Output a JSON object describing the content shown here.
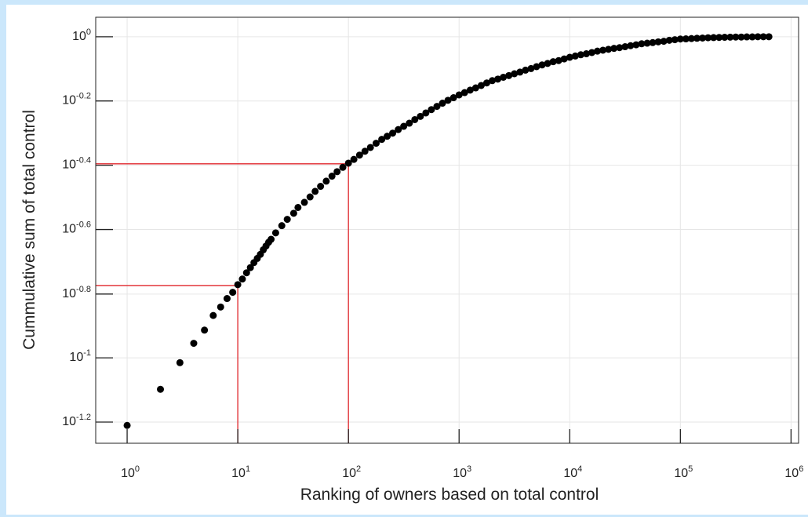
{
  "chart_data": {
    "type": "scatter",
    "x_label": "Ranking of owners based on total control",
    "y_label": "Cummulative sum of total control",
    "xscale": "log",
    "yscale": "log",
    "grid": true,
    "color": "#000000",
    "xlim": [
      0.52,
      1170000
    ],
    "ylim": [
      0.0542,
      1.15
    ],
    "xticks": [
      {
        "value": 1,
        "label": "10",
        "exponent": "0"
      },
      {
        "value": 10,
        "label": "10",
        "exponent": "1"
      },
      {
        "value": 100,
        "label": "10",
        "exponent": "2"
      },
      {
        "value": 1000,
        "label": "10",
        "exponent": "3"
      },
      {
        "value": 10000,
        "label": "10",
        "exponent": "4"
      },
      {
        "value": 100000,
        "label": "10",
        "exponent": "5"
      },
      {
        "value": 1000000,
        "label": "10",
        "exponent": "6"
      }
    ],
    "yticks": [
      {
        "value": 1,
        "label": "10",
        "exponent": "0"
      },
      {
        "value": 0.631,
        "label": "10",
        "exponent": "-0.2"
      },
      {
        "value": 0.398,
        "label": "10",
        "exponent": "-0.4"
      },
      {
        "value": 0.251,
        "label": "10",
        "exponent": "-0.6"
      },
      {
        "value": 0.158,
        "label": "10",
        "exponent": "-0.8"
      },
      {
        "value": 0.1,
        "label": "10",
        "exponent": "-1"
      },
      {
        "value": 0.0631,
        "label": "10",
        "exponent": "-1.2"
      }
    ],
    "reference_lines": [
      {
        "x": 10,
        "y": 0.168,
        "color": "#e0262b"
      },
      {
        "x": 100,
        "y": 0.402,
        "color": "#e0262b"
      }
    ],
    "x": [
      1,
      2,
      3,
      4,
      5,
      6,
      7,
      8,
      9,
      10,
      11,
      12,
      13,
      14,
      15,
      16,
      17,
      18,
      19,
      20,
      22,
      25,
      28,
      32,
      35,
      40,
      45,
      50,
      56,
      63,
      71,
      79,
      89,
      100,
      112,
      126,
      141,
      158,
      178,
      200,
      224,
      251,
      282,
      316,
      355,
      398,
      447,
      501,
      562,
      631,
      708,
      794,
      891,
      1000,
      1122,
      1259,
      1413,
      1585,
      1778,
      1995,
      2239,
      2512,
      2818,
      3162,
      3548,
      3981,
      4467,
      5012,
      5623,
      6310,
      7079,
      7943,
      8913,
      10000,
      11220,
      12589,
      14125,
      15849,
      17783,
      19953,
      22387,
      25119,
      28184,
      31623,
      35481,
      39811,
      44668,
      50119,
      56234,
      63096,
      70795,
      79433,
      89125,
      100000,
      112202,
      125893,
      141254,
      158489,
      177828,
      199526,
      223872,
      251189,
      281838,
      316228,
      354813,
      398107,
      446684,
      501187,
      562341,
      630957
    ],
    "values": [
      0.0616,
      0.0798,
      0.0966,
      0.111,
      0.122,
      0.1355,
      0.144,
      0.153,
      0.16,
      0.169,
      0.176,
      0.184,
      0.191,
      0.198,
      0.204,
      0.21,
      0.217,
      0.223,
      0.229,
      0.234,
      0.245,
      0.258,
      0.27,
      0.282,
      0.294,
      0.305,
      0.317,
      0.33,
      0.342,
      0.355,
      0.368,
      0.38,
      0.392,
      0.404,
      0.415,
      0.428,
      0.44,
      0.452,
      0.466,
      0.479,
      0.49,
      0.501,
      0.514,
      0.526,
      0.538,
      0.552,
      0.565,
      0.579,
      0.593,
      0.607,
      0.621,
      0.634,
      0.646,
      0.659,
      0.67,
      0.682,
      0.693,
      0.705,
      0.718,
      0.73,
      0.738,
      0.748,
      0.757,
      0.767,
      0.776,
      0.787,
      0.796,
      0.807,
      0.817,
      0.826,
      0.836,
      0.843,
      0.853,
      0.863,
      0.871,
      0.879,
      0.885,
      0.893,
      0.902,
      0.908,
      0.914,
      0.92,
      0.925,
      0.931,
      0.938,
      0.944,
      0.951,
      0.955,
      0.959,
      0.964,
      0.968,
      0.975,
      0.979,
      0.984,
      0.985,
      0.987,
      0.989,
      0.991,
      0.993,
      0.994,
      0.995,
      0.996,
      0.997,
      0.998,
      0.998,
      0.999,
      0.999,
      1.0,
      1.0,
      1.0
    ]
  }
}
